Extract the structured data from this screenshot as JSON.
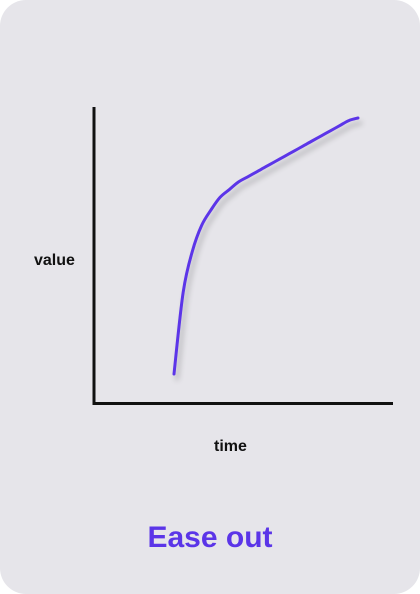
{
  "card": {
    "caption": "Ease out",
    "background_color": "#e6e5ea",
    "accent_color": "#5b35e8"
  },
  "chart_data": {
    "type": "line",
    "title": "",
    "xlabel": "time",
    "ylabel": "value",
    "grid": false,
    "easing": "ease-out",
    "series": [
      {
        "x": [
          0.0,
          0.05,
          0.1,
          0.15,
          0.2,
          0.25,
          0.3,
          0.35,
          0.4,
          0.45,
          0.5,
          0.55,
          0.6,
          0.65,
          0.7,
          0.75,
          0.8,
          0.85,
          0.9,
          0.95,
          1.0
        ],
        "y": [
          0.0,
          0.32,
          0.48,
          0.58,
          0.64,
          0.69,
          0.72,
          0.75,
          0.77,
          0.79,
          0.81,
          0.83,
          0.85,
          0.87,
          0.89,
          0.91,
          0.93,
          0.95,
          0.97,
          0.99,
          1.0
        ]
      }
    ],
    "color": "#5b35e8"
  }
}
